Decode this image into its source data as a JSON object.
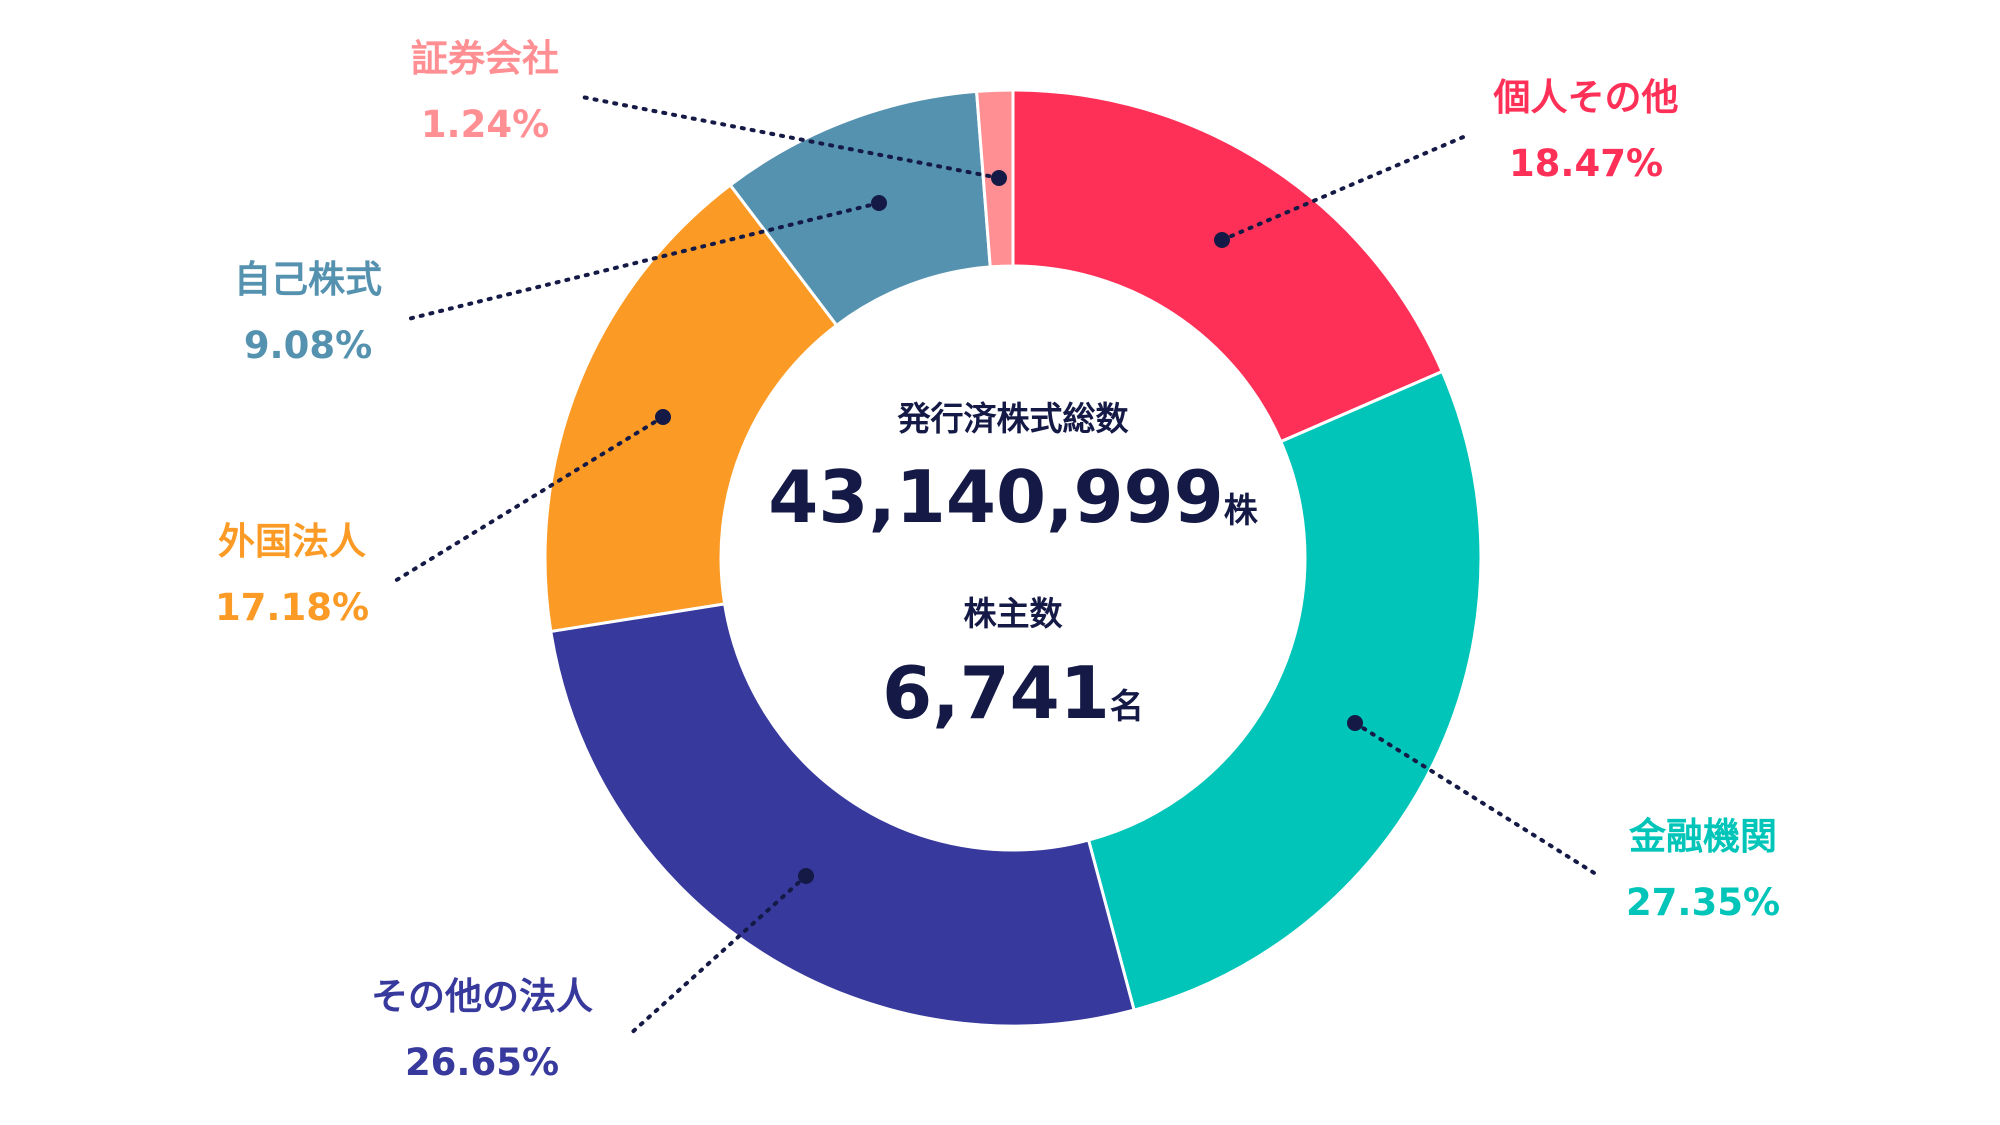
{
  "chart_data": {
    "type": "pie",
    "donut": true,
    "categories": [
      "個人その他",
      "金融機関",
      "その他の法人",
      "外国法人",
      "自己株式",
      "証券会社"
    ],
    "values": [
      18.47,
      27.35,
      26.65,
      17.18,
      9.08,
      1.24
    ],
    "value_labels": [
      "18.47%",
      "27.35%",
      "26.65%",
      "17.18%",
      "9.08%",
      "1.24%"
    ],
    "colors": [
      "#ff3057",
      "#00c5b8",
      "#37399d",
      "#fb9b26",
      "#5592b0",
      "#ff8f93"
    ],
    "start": "top",
    "direction": "clockwise",
    "center": {
      "total_shares_label": "発行済株式総数",
      "total_shares_value": "43,140,999",
      "total_shares_unit": "株",
      "shareholders_label": "株主数",
      "shareholders_value": "6,741",
      "shareholders_unit": "名"
    }
  }
}
